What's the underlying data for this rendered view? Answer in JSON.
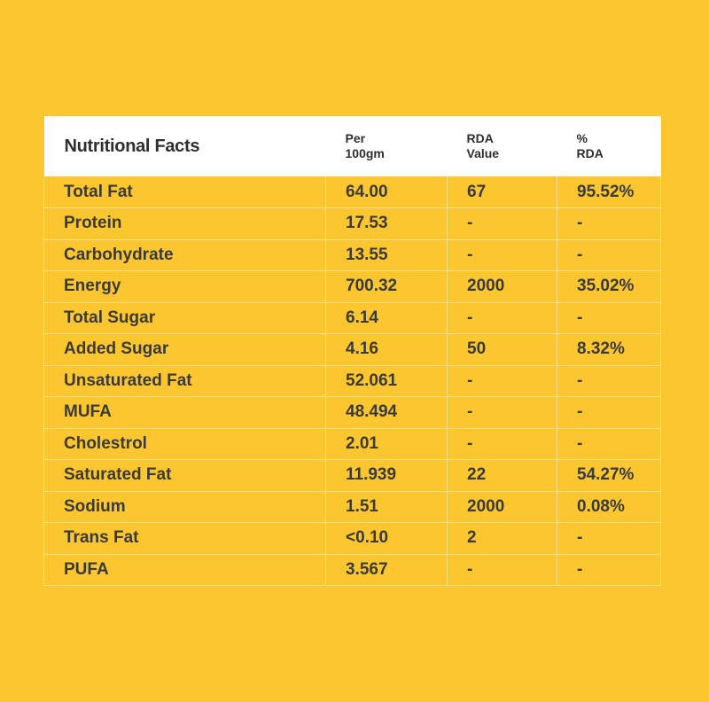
{
  "header": {
    "title": "Nutritional Facts",
    "per_line1": "Per",
    "per_line2": "100gm",
    "rda_line1": "RDA",
    "rda_line2": "Value",
    "pct_line1": "%",
    "pct_line2": "RDA"
  },
  "rows": [
    {
      "name": "Total Fat",
      "per100": "64.00",
      "rda": "67",
      "pct": "95.52%"
    },
    {
      "name": "Protein",
      "per100": "17.53",
      "rda": "-",
      "pct": "-"
    },
    {
      "name": "Carbohydrate",
      "per100": "13.55",
      "rda": "-",
      "pct": "-"
    },
    {
      "name": "Energy",
      "per100": "700.32",
      "rda": "2000",
      "pct": "35.02%"
    },
    {
      "name": "Total Sugar",
      "per100": "6.14",
      "rda": "-",
      "pct": "-"
    },
    {
      "name": "Added Sugar",
      "per100": "4.16",
      "rda": "50",
      "pct": "8.32%"
    },
    {
      "name": "Unsaturated Fat",
      "per100": "52.061",
      "rda": "-",
      "pct": "-"
    },
    {
      "name": "MUFA",
      "per100": "48.494",
      "rda": "-",
      "pct": "-"
    },
    {
      "name": "Cholestrol",
      "per100": "2.01",
      "rda": "-",
      "pct": "-"
    },
    {
      "name": "Saturated Fat",
      "per100": "11.939",
      "rda": "22",
      "pct": "54.27%"
    },
    {
      "name": "Sodium",
      "per100": "1.51",
      "rda": "2000",
      "pct": "0.08%"
    },
    {
      "name": "Trans Fat",
      "per100": "<0.10",
      "rda": "2",
      "pct": "-"
    },
    {
      "name": "PUFA",
      "per100": "3.567",
      "rda": "-",
      "pct": "-"
    }
  ],
  "colors": {
    "background": "#FCC631",
    "header_background": "#FFFFFF",
    "grid_line": "#FDE28A",
    "text": "#3A3A3A"
  }
}
